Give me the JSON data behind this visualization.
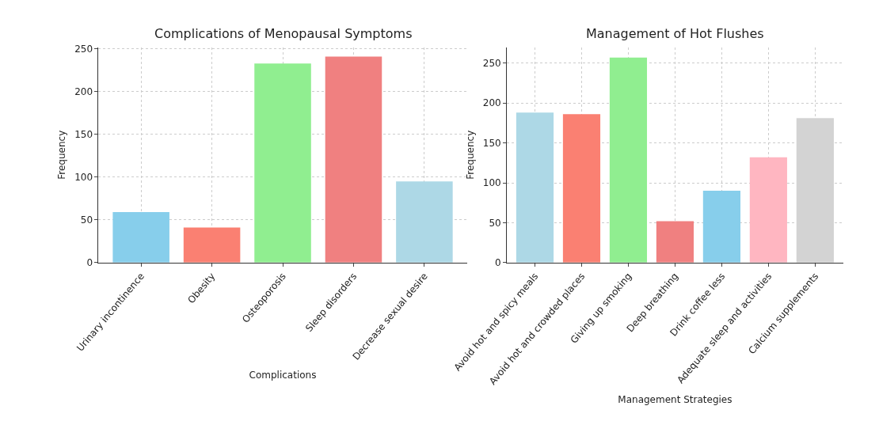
{
  "chart_data": [
    {
      "type": "bar",
      "title": "Complications of Menopausal Symptoms",
      "xlabel": "Complications",
      "ylabel": "Frequency",
      "categories": [
        "Urinary incontinence",
        "Obesity",
        "Osteoporosis",
        "Sleep disorders",
        "Decrease sexual desire"
      ],
      "values": [
        59,
        41,
        233,
        241,
        95
      ],
      "colors": [
        "#87ceeb",
        "#fa8072",
        "#90ee90",
        "#f08080",
        "#add8e6"
      ],
      "ylim": [
        0,
        252
      ],
      "yticks": [
        0,
        50,
        100,
        150,
        200,
        250
      ],
      "grid": true
    },
    {
      "type": "bar",
      "title": "Management of Hot Flushes",
      "xlabel": "Management Strategies",
      "ylabel": "Frequency",
      "categories": [
        "Avoid hot and spicy meals",
        "Avoid hot and crowded places",
        "Giving up smoking",
        "Deep breathing",
        "Drink coffee less",
        "Adequate sleep and activities",
        "Calcium supplements"
      ],
      "values": [
        188,
        186,
        257,
        52,
        90,
        132,
        181
      ],
      "colors": [
        "#add8e6",
        "#fa8072",
        "#90ee90",
        "#f08080",
        "#87ceeb",
        "#ffb6c1",
        "#d3d3d3"
      ],
      "ylim": [
        0,
        270
      ],
      "yticks": [
        0,
        50,
        100,
        150,
        200,
        250
      ],
      "grid": true
    }
  ]
}
